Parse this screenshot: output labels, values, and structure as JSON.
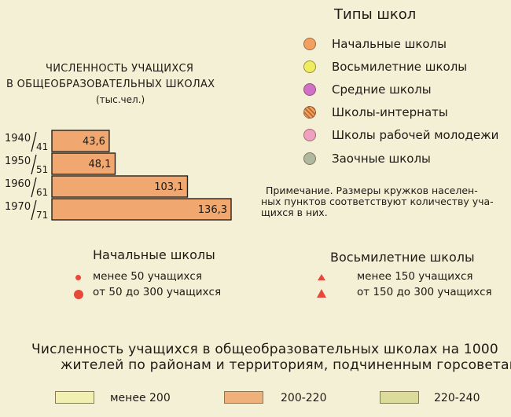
{
  "chart": {
    "title_line1": "ЧИСЛЕННОСТЬ  УЧАЩИХСЯ",
    "title_line2": "В  ОБЩЕОБРАЗОВАТЕЛЬНЫХ  ШКОЛАХ",
    "unit": "(тыс.чел.)"
  },
  "chart_data": {
    "type": "bar",
    "title": "ЧИСЛЕННОСТЬ УЧАЩИХСЯ В ОБЩЕОБРАЗОВАТЕЛЬНЫХ ШКОЛАХ",
    "unit": "(тыс.чел.)",
    "categories": [
      {
        "year": "1940",
        "sub": "41"
      },
      {
        "year": "1950",
        "sub": "51"
      },
      {
        "year": "1960",
        "sub": "61"
      },
      {
        "year": "1970",
        "sub": "71"
      }
    ],
    "values": [
      43.6,
      48.1,
      103.1,
      136.3
    ],
    "value_labels": [
      "43,6",
      "48,1",
      "103,1",
      "136,3"
    ],
    "orientation": "horizontal",
    "bar_color": "#f0a870"
  },
  "legend_types": {
    "title": "Типы школ",
    "items": [
      {
        "label": "Начальные школы",
        "color": "#f2a060",
        "icon": "orange-circle-icon"
      },
      {
        "label": "Восьмилетние школы",
        "color": "#f0ec60",
        "icon": "yellow-circle-icon"
      },
      {
        "label": "Средние школы",
        "color": "#d070c8",
        "icon": "purple-circle-icon"
      },
      {
        "label": "Школы-интернаты",
        "color": "#e08a48",
        "icon": "hatched-circle-icon"
      },
      {
        "label": "Школы рабочей молодежи",
        "color": "#f0a0c0",
        "icon": "pink-circle-icon"
      },
      {
        "label": "Заочные школы",
        "color": "#b0b8a0",
        "icon": "gray-circle-icon"
      }
    ]
  },
  "note": {
    "line1": "Примечание. Размеры кружков населен-",
    "line2": "ных пунктов соответствуют количеству уча-",
    "line3": "щихся в них."
  },
  "primary_schools": {
    "title": "Начальные школы",
    "items": [
      {
        "label": "менее 50 учащихся"
      },
      {
        "label": "от 50 до 300 учащихся"
      }
    ],
    "color": "#e8483a"
  },
  "eight_year_schools": {
    "title": "Восьмилетние школы",
    "items": [
      {
        "label": "менее 150 учащихся"
      },
      {
        "label": "от 150 до 300 учащихся"
      }
    ],
    "color": "#e8483a"
  },
  "density": {
    "title_line1": "Численность учащихся в общеобразовательных школах на 1000",
    "title_line2": "жителей по районам и территориям, подчиненным горсоветам",
    "items": [
      {
        "label": "менее 200",
        "color": "#f2f0b0"
      },
      {
        "label": "200-220",
        "color": "#f0b07a"
      },
      {
        "label": "220-240",
        "color": "#dcdc9a"
      }
    ]
  }
}
